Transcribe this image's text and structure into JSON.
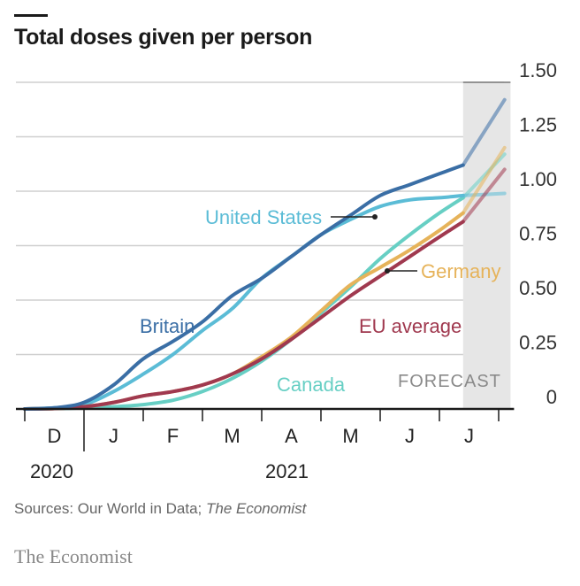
{
  "title": "Total doses given per person",
  "chart_data": {
    "type": "line",
    "title": "Total doses given per person",
    "xlabel": "",
    "ylabel": "",
    "ylim": [
      0,
      1.5
    ],
    "y_ticks": [
      0,
      0.25,
      0.5,
      0.75,
      1.0,
      1.25,
      1.5
    ],
    "y_tick_labels": [
      "0",
      "0.25",
      "0.50",
      "0.75",
      "1.00",
      "1.25",
      "1.50"
    ],
    "x_tick_labels": [
      "D",
      "J",
      "F",
      "M",
      "A",
      "M",
      "J",
      "J"
    ],
    "x_year_labels": [
      "2020",
      "2021"
    ],
    "x_month_index_range": [
      0,
      8
    ],
    "forecast_region": [
      7.4,
      8.2
    ],
    "forecast_label": "FORECAST",
    "grid": true,
    "series": [
      {
        "name": "Britain",
        "color": "#3a6ea5",
        "x": [
          0,
          0.5,
          1,
          1.5,
          2,
          2.5,
          3,
          3.5,
          4,
          4.5,
          5,
          5.5,
          6,
          6.5,
          7,
          7.4,
          8.1
        ],
        "values": [
          0,
          0.005,
          0.03,
          0.11,
          0.23,
          0.31,
          0.4,
          0.52,
          0.6,
          0.7,
          0.8,
          0.89,
          0.98,
          1.03,
          1.08,
          1.12,
          1.42
        ]
      },
      {
        "name": "United States",
        "color": "#5bbcd6",
        "x": [
          0,
          0.5,
          1,
          1.5,
          2,
          2.5,
          3,
          3.5,
          4,
          4.5,
          5,
          5.5,
          6,
          6.5,
          7,
          7.4,
          8.1
        ],
        "values": [
          0,
          0.005,
          0.02,
          0.08,
          0.16,
          0.25,
          0.36,
          0.46,
          0.6,
          0.7,
          0.8,
          0.87,
          0.93,
          0.96,
          0.97,
          0.98,
          0.99
        ]
      },
      {
        "name": "Canada",
        "color": "#67cfc4",
        "x": [
          0,
          0.5,
          1,
          1.5,
          2,
          2.5,
          3,
          3.5,
          4,
          4.5,
          5,
          5.5,
          6,
          6.5,
          7,
          7.4,
          8.1
        ],
        "values": [
          0,
          0.002,
          0.005,
          0.01,
          0.02,
          0.04,
          0.08,
          0.14,
          0.22,
          0.32,
          0.44,
          0.56,
          0.69,
          0.8,
          0.9,
          0.97,
          1.17
        ]
      },
      {
        "name": "Germany",
        "color": "#e6b35a",
        "x": [
          0,
          0.5,
          1,
          1.5,
          2,
          2.5,
          3,
          3.5,
          4,
          4.5,
          5,
          5.5,
          6,
          6.5,
          7,
          7.4,
          8.1
        ],
        "values": [
          0,
          0.002,
          0.01,
          0.03,
          0.06,
          0.08,
          0.11,
          0.16,
          0.24,
          0.33,
          0.45,
          0.57,
          0.65,
          0.73,
          0.82,
          0.9,
          1.2
        ]
      },
      {
        "name": "EU average",
        "color": "#a0394f",
        "x": [
          0,
          0.5,
          1,
          1.5,
          2,
          2.5,
          3,
          3.5,
          4,
          4.5,
          5,
          5.5,
          6,
          6.5,
          7,
          7.4,
          8.1
        ],
        "values": [
          0,
          0.002,
          0.01,
          0.03,
          0.06,
          0.08,
          0.11,
          0.16,
          0.23,
          0.32,
          0.42,
          0.52,
          0.61,
          0.7,
          0.79,
          0.86,
          1.1
        ]
      }
    ]
  },
  "footer": {
    "source_prefix": "Sources: Our World in Data; ",
    "source_italic": "The Economist",
    "brand": "The Economist"
  }
}
